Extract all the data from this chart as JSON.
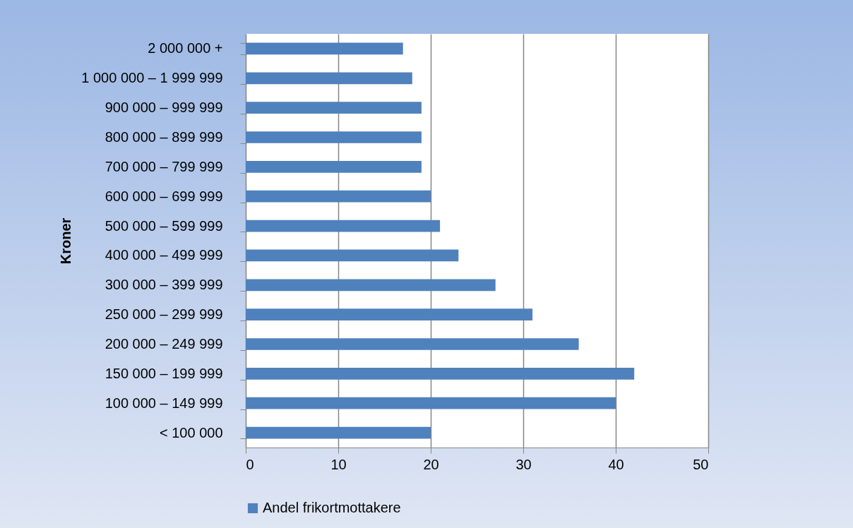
{
  "chart_data": {
    "type": "bar",
    "orientation": "horizontal",
    "ylabel": "Kroner",
    "categories": [
      "2 000 000 +",
      "1 000 000 – 1 999 999",
      "900 000 – 999 999",
      "800 000 – 899 999",
      "700 000 – 799 999",
      "600 000 – 699 999",
      "500 000 – 599 999",
      "400 000 – 499 999",
      "300 000 – 399 999",
      "250 000 – 299 999",
      "200 000 – 249 999",
      "150 000 – 199 999",
      "100 000 – 149 999",
      "< 100 000"
    ],
    "series": [
      {
        "name": "Andel frikortmottakere",
        "color": "#4f81bd",
        "values": [
          17,
          18,
          19,
          19,
          19,
          20,
          21,
          23,
          27,
          31,
          36,
          42,
          40,
          20
        ]
      }
    ],
    "xlim": [
      0,
      50
    ],
    "xticks": [
      0,
      10,
      20,
      30,
      40,
      50
    ],
    "grid": "x",
    "legend": "bottom"
  }
}
